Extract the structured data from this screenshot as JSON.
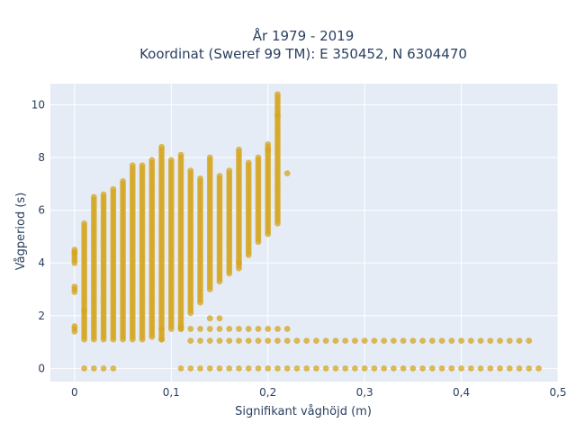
{
  "chart_data": {
    "type": "scatter",
    "title_line1": "År 1979 - 2019",
    "title_line2": "Koordinat (Sweref 99 TM): E 350452, N 6304470",
    "xlabel": "Signifikant våghöjd (m)",
    "ylabel": "Vågperiod (s)",
    "xlim": [
      -0.025,
      0.5
    ],
    "ylim": [
      -0.5,
      10.8
    ],
    "x_ticks": [
      0,
      0.1,
      0.2,
      0.3,
      0.4,
      0.5
    ],
    "x_tick_labels": [
      "0",
      "0,1",
      "0,2",
      "0,3",
      "0,4",
      "0,5"
    ],
    "y_ticks": [
      0,
      2,
      4,
      6,
      8,
      10
    ],
    "y_tick_labels": [
      "0",
      "2",
      "4",
      "6",
      "8",
      "10"
    ],
    "grid": true,
    "plot_background": "#e5ecf6",
    "grid_color": "#ffffff",
    "marker_color": "#d4a520",
    "marker_opacity": 0.75,
    "columns": [
      {
        "x": 0.0,
        "ymin": 1.4,
        "ymax": 1.6
      },
      {
        "x": 0.0,
        "ymin": 2.9,
        "ymax": 3.1
      },
      {
        "x": 0.0,
        "ymin": 4.0,
        "ymax": 4.5
      },
      {
        "x": 0.01,
        "ymin": 1.1,
        "ymax": 5.5
      },
      {
        "x": 0.02,
        "ymin": 1.1,
        "ymax": 6.5
      },
      {
        "x": 0.03,
        "ymin": 1.1,
        "ymax": 6.6
      },
      {
        "x": 0.04,
        "ymin": 1.1,
        "ymax": 6.8
      },
      {
        "x": 0.05,
        "ymin": 1.1,
        "ymax": 7.1
      },
      {
        "x": 0.06,
        "ymin": 1.1,
        "ymax": 7.7
      },
      {
        "x": 0.07,
        "ymin": 1.1,
        "ymax": 7.7
      },
      {
        "x": 0.08,
        "ymin": 1.2,
        "ymax": 7.9
      },
      {
        "x": 0.09,
        "ymin": 1.1,
        "ymax": 8.4
      },
      {
        "x": 0.1,
        "ymin": 1.6,
        "ymax": 7.9
      },
      {
        "x": 0.11,
        "ymin": 1.5,
        "ymax": 8.1
      },
      {
        "x": 0.12,
        "ymin": 2.1,
        "ymax": 7.5
      },
      {
        "x": 0.13,
        "ymin": 2.5,
        "ymax": 7.2
      },
      {
        "x": 0.14,
        "ymin": 3.0,
        "ymax": 8.0
      },
      {
        "x": 0.15,
        "ymin": 3.3,
        "ymax": 7.3
      },
      {
        "x": 0.16,
        "ymin": 3.6,
        "ymax": 7.5
      },
      {
        "x": 0.17,
        "ymin": 3.8,
        "ymax": 8.3
      },
      {
        "x": 0.18,
        "ymin": 4.3,
        "ymax": 7.8
      },
      {
        "x": 0.19,
        "ymin": 4.8,
        "ymax": 8.0
      },
      {
        "x": 0.2,
        "ymin": 5.1,
        "ymax": 8.5
      },
      {
        "x": 0.21,
        "ymin": 5.5,
        "ymax": 10.3
      }
    ],
    "bottom_bands": [
      {
        "y": 0.0,
        "x_from": 0.01,
        "x_to": 0.04
      },
      {
        "y": 0.0,
        "x_from": 0.11,
        "x_to": 0.48
      },
      {
        "y": 1.05,
        "x_from": 0.12,
        "x_to": 0.47
      },
      {
        "y": 1.5,
        "x_from": 0.09,
        "x_to": 0.22
      }
    ],
    "isolated_points": [
      {
        "x": 0.0,
        "y": 4.4
      },
      {
        "x": 0.01,
        "y": 2.2
      },
      {
        "x": 0.09,
        "y": 1.1
      },
      {
        "x": 0.11,
        "y": 1.6
      },
      {
        "x": 0.14,
        "y": 1.9
      },
      {
        "x": 0.15,
        "y": 1.9
      },
      {
        "x": 0.17,
        "y": 4.0
      },
      {
        "x": 0.2,
        "y": 8.3
      },
      {
        "x": 0.21,
        "y": 9.6
      },
      {
        "x": 0.21,
        "y": 10.4
      },
      {
        "x": 0.22,
        "y": 7.4
      }
    ]
  }
}
